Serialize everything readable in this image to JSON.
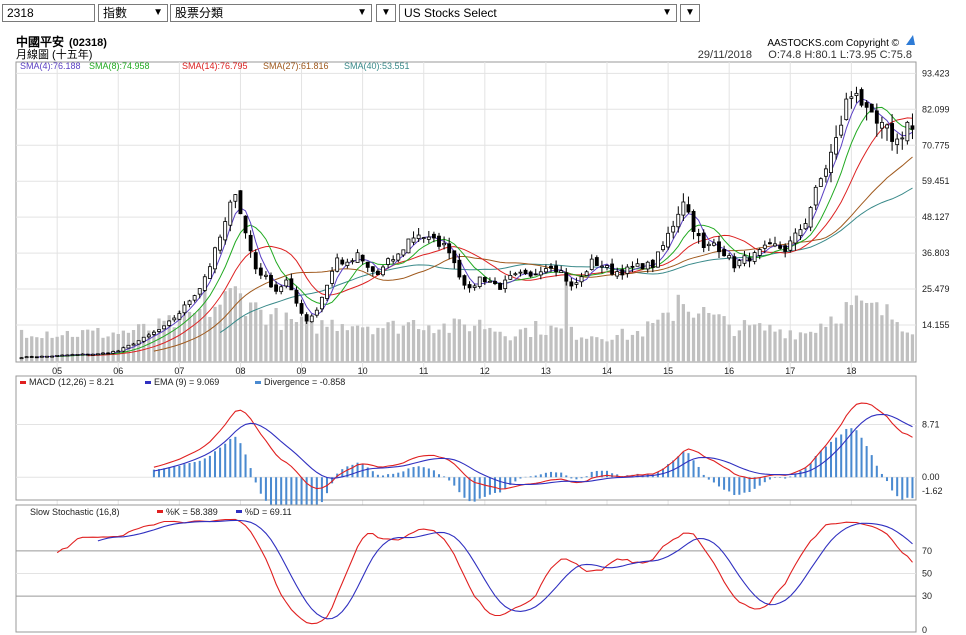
{
  "toolbar": {
    "symbol_value": "2318",
    "category_value": "指數",
    "sector_value": "股票分類",
    "market_value": "US Stocks Select",
    "dropdown_glyph": "▼"
  },
  "header": {
    "name": "中國平安",
    "code": "(02318)",
    "subtitle": "月線圖 (十五年)",
    "brand": "AASTOCKS.com Copyright ©",
    "date": "29/11/2018",
    "ohlc": "O:74.8  H:80.1  L:73.95  C:75.8"
  },
  "colors": {
    "up": "#ffffff",
    "down": "#000000",
    "volume": "#c0c0c0",
    "sma4": "#5a3fc4",
    "sma8": "#22aa22",
    "sma14": "#dd2222",
    "sma27": "#a05a1e",
    "sma40": "#3a8a8a",
    "macd": "#e02020",
    "ema": "#3030c0",
    "divergence": "#4a8ad0",
    "k": "#e02020",
    "d": "#3030c0"
  },
  "chart_data": [
    {
      "type": "candlestick",
      "legend": [
        {
          "key": "sma4",
          "label": "SMA(4):76.188"
        },
        {
          "key": "sma8",
          "label": "SMA(8):74.958"
        },
        {
          "key": "sma14",
          "label": "SMA(14):76.795"
        },
        {
          "key": "sma27",
          "label": "SMA(27):61.816"
        },
        {
          "key": "sma40",
          "label": "SMA(40):53.551"
        }
      ],
      "y_ticks": [
        "93.423",
        "82.099",
        "70.775",
        "59.451",
        "48.127",
        "36.803",
        "25.479",
        "14.155"
      ],
      "y_tick_values": [
        93.423,
        82.099,
        70.775,
        59.451,
        48.127,
        36.803,
        25.479,
        14.155
      ],
      "ylim": [
        2.5,
        97
      ],
      "x_ticks": [
        "05",
        "06",
        "07",
        "08",
        "09",
        "10",
        "11",
        "12",
        "13",
        "14",
        "15",
        "16",
        "17",
        "18"
      ],
      "x_tick_index": [
        7,
        19,
        31,
        43,
        55,
        67,
        79,
        91,
        103,
        115,
        127,
        139,
        151,
        163
      ],
      "anchors": [
        [
          0,
          4.0
        ],
        [
          5,
          4.3
        ],
        [
          10,
          4.8
        ],
        [
          15,
          5.0
        ],
        [
          19,
          6.0
        ],
        [
          24,
          10.0
        ],
        [
          28,
          13.5
        ],
        [
          31,
          18.0
        ],
        [
          35,
          26.0
        ],
        [
          37,
          33.0
        ],
        [
          40,
          46.0
        ],
        [
          42,
          57.0
        ],
        [
          44,
          43.0
        ],
        [
          46,
          32.0
        ],
        [
          48,
          29.0
        ],
        [
          50,
          25.0
        ],
        [
          52,
          28.0
        ],
        [
          54,
          21.0
        ],
        [
          56,
          15.5
        ],
        [
          58,
          19.0
        ],
        [
          60,
          27.0
        ],
        [
          62,
          35.0
        ],
        [
          64,
          33.0
        ],
        [
          66,
          36.0
        ],
        [
          68,
          32.0
        ],
        [
          70,
          30.0
        ],
        [
          72,
          34.0
        ],
        [
          74,
          36.0
        ],
        [
          76,
          41.0
        ],
        [
          78,
          43.0
        ],
        [
          80,
          41.0
        ],
        [
          82,
          40.0
        ],
        [
          84,
          38.0
        ],
        [
          86,
          30.0
        ],
        [
          88,
          25.0
        ],
        [
          90,
          29.0
        ],
        [
          92,
          28.0
        ],
        [
          94,
          26.0
        ],
        [
          96,
          29.0
        ],
        [
          98,
          30.0
        ],
        [
          100,
          29.0
        ],
        [
          102,
          32.0
        ],
        [
          104,
          33.0
        ],
        [
          106,
          31.0
        ],
        [
          108,
          26.0
        ],
        [
          110,
          29.0
        ],
        [
          112,
          34.0
        ],
        [
          114,
          33.0
        ],
        [
          116,
          31.0
        ],
        [
          118,
          31.0
        ],
        [
          120,
          32.0
        ],
        [
          122,
          33.0
        ],
        [
          124,
          33.0
        ],
        [
          126,
          39.0
        ],
        [
          128,
          46.0
        ],
        [
          130,
          54.0
        ],
        [
          132,
          45.0
        ],
        [
          134,
          38.0
        ],
        [
          136,
          40.0
        ],
        [
          138,
          37.0
        ],
        [
          140,
          33.0
        ],
        [
          142,
          35.0
        ],
        [
          144,
          36.0
        ],
        [
          146,
          38.0
        ],
        [
          148,
          39.0
        ],
        [
          150,
          38.0
        ],
        [
          152,
          42.0
        ],
        [
          154,
          47.0
        ],
        [
          156,
          56.0
        ],
        [
          158,
          64.0
        ],
        [
          160,
          72.0
        ],
        [
          162,
          84.0
        ],
        [
          164,
          89.0
        ],
        [
          166,
          80.0
        ],
        [
          168,
          77.0
        ],
        [
          170,
          75.0
        ],
        [
          172,
          72.0
        ],
        [
          174,
          78.0
        ],
        [
          175,
          75.8
        ]
      ],
      "volume_anchors": [
        [
          0,
          0.34
        ],
        [
          8,
          0.3
        ],
        [
          18,
          0.3
        ],
        [
          26,
          0.35
        ],
        [
          32,
          0.45
        ],
        [
          38,
          0.58
        ],
        [
          42,
          0.72
        ],
        [
          46,
          0.55
        ],
        [
          52,
          0.42
        ],
        [
          58,
          0.38
        ],
        [
          64,
          0.42
        ],
        [
          72,
          0.36
        ],
        [
          78,
          0.42
        ],
        [
          84,
          0.36
        ],
        [
          90,
          0.4
        ],
        [
          96,
          0.3
        ],
        [
          102,
          0.36
        ],
        [
          108,
          0.3
        ],
        [
          114,
          0.28
        ],
        [
          120,
          0.28
        ],
        [
          126,
          0.42
        ],
        [
          130,
          0.62
        ],
        [
          134,
          0.5
        ],
        [
          140,
          0.36
        ],
        [
          148,
          0.34
        ],
        [
          154,
          0.3
        ],
        [
          160,
          0.5
        ],
        [
          164,
          0.6
        ],
        [
          170,
          0.5
        ],
        [
          175,
          0.36
        ]
      ],
      "volume_spikes": [
        [
          36,
          0.82
        ],
        [
          45,
          0.62
        ],
        [
          107,
          0.84
        ],
        [
          129,
          0.7
        ],
        [
          165,
          0.64
        ]
      ]
    },
    {
      "type": "line",
      "legend": [
        {
          "key": "macd",
          "label": "MACD (12,26) = 8.21"
        },
        {
          "key": "ema",
          "label": "EMA (9) = 9.069"
        },
        {
          "key": "divergence",
          "label": "Divergence = -0.858"
        }
      ],
      "y_ticks": [
        "8.71",
        "0.00",
        "-1.62"
      ],
      "y_tick_values": [
        8.71,
        0.0,
        -1.62
      ]
    },
    {
      "type": "line",
      "legend": [
        {
          "key": "label",
          "label": "Slow Stochastic (16,8)"
        },
        {
          "key": "k",
          "label": "%K = 58.389"
        },
        {
          "key": "d",
          "label": "%D = 69.11"
        }
      ],
      "y_ticks": [
        "70",
        "50",
        "30",
        "0"
      ],
      "y_tick_values": [
        70,
        50,
        30,
        0
      ]
    }
  ]
}
